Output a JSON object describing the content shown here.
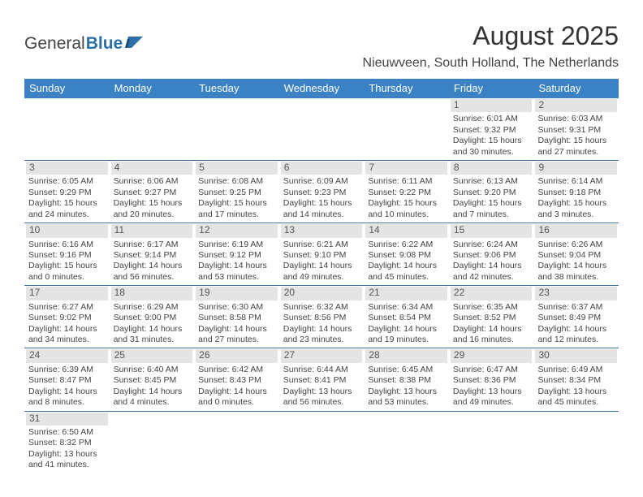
{
  "logo": {
    "text1": "General",
    "text2": "Blue"
  },
  "title": "August 2025",
  "location": "Nieuwveen, South Holland, The Netherlands",
  "theme": {
    "header_bg": "#3b82c4",
    "header_fg": "#ffffff",
    "row_border": "#3b6fa0",
    "daynum_bg": "#e4e4e4",
    "text_color": "#444444"
  },
  "day_headers": [
    "Sunday",
    "Monday",
    "Tuesday",
    "Wednesday",
    "Thursday",
    "Friday",
    "Saturday"
  ],
  "weeks": [
    [
      null,
      null,
      null,
      null,
      null,
      {
        "n": "1",
        "sunrise": "6:01 AM",
        "sunset": "9:32 PM",
        "daylight": "15 hours and 30 minutes."
      },
      {
        "n": "2",
        "sunrise": "6:03 AM",
        "sunset": "9:31 PM",
        "daylight": "15 hours and 27 minutes."
      }
    ],
    [
      {
        "n": "3",
        "sunrise": "6:05 AM",
        "sunset": "9:29 PM",
        "daylight": "15 hours and 24 minutes."
      },
      {
        "n": "4",
        "sunrise": "6:06 AM",
        "sunset": "9:27 PM",
        "daylight": "15 hours and 20 minutes."
      },
      {
        "n": "5",
        "sunrise": "6:08 AM",
        "sunset": "9:25 PM",
        "daylight": "15 hours and 17 minutes."
      },
      {
        "n": "6",
        "sunrise": "6:09 AM",
        "sunset": "9:23 PM",
        "daylight": "15 hours and 14 minutes."
      },
      {
        "n": "7",
        "sunrise": "6:11 AM",
        "sunset": "9:22 PM",
        "daylight": "15 hours and 10 minutes."
      },
      {
        "n": "8",
        "sunrise": "6:13 AM",
        "sunset": "9:20 PM",
        "daylight": "15 hours and 7 minutes."
      },
      {
        "n": "9",
        "sunrise": "6:14 AM",
        "sunset": "9:18 PM",
        "daylight": "15 hours and 3 minutes."
      }
    ],
    [
      {
        "n": "10",
        "sunrise": "6:16 AM",
        "sunset": "9:16 PM",
        "daylight": "15 hours and 0 minutes."
      },
      {
        "n": "11",
        "sunrise": "6:17 AM",
        "sunset": "9:14 PM",
        "daylight": "14 hours and 56 minutes."
      },
      {
        "n": "12",
        "sunrise": "6:19 AM",
        "sunset": "9:12 PM",
        "daylight": "14 hours and 53 minutes."
      },
      {
        "n": "13",
        "sunrise": "6:21 AM",
        "sunset": "9:10 PM",
        "daylight": "14 hours and 49 minutes."
      },
      {
        "n": "14",
        "sunrise": "6:22 AM",
        "sunset": "9:08 PM",
        "daylight": "14 hours and 45 minutes."
      },
      {
        "n": "15",
        "sunrise": "6:24 AM",
        "sunset": "9:06 PM",
        "daylight": "14 hours and 42 minutes."
      },
      {
        "n": "16",
        "sunrise": "6:26 AM",
        "sunset": "9:04 PM",
        "daylight": "14 hours and 38 minutes."
      }
    ],
    [
      {
        "n": "17",
        "sunrise": "6:27 AM",
        "sunset": "9:02 PM",
        "daylight": "14 hours and 34 minutes."
      },
      {
        "n": "18",
        "sunrise": "6:29 AM",
        "sunset": "9:00 PM",
        "daylight": "14 hours and 31 minutes."
      },
      {
        "n": "19",
        "sunrise": "6:30 AM",
        "sunset": "8:58 PM",
        "daylight": "14 hours and 27 minutes."
      },
      {
        "n": "20",
        "sunrise": "6:32 AM",
        "sunset": "8:56 PM",
        "daylight": "14 hours and 23 minutes."
      },
      {
        "n": "21",
        "sunrise": "6:34 AM",
        "sunset": "8:54 PM",
        "daylight": "14 hours and 19 minutes."
      },
      {
        "n": "22",
        "sunrise": "6:35 AM",
        "sunset": "8:52 PM",
        "daylight": "14 hours and 16 minutes."
      },
      {
        "n": "23",
        "sunrise": "6:37 AM",
        "sunset": "8:49 PM",
        "daylight": "14 hours and 12 minutes."
      }
    ],
    [
      {
        "n": "24",
        "sunrise": "6:39 AM",
        "sunset": "8:47 PM",
        "daylight": "14 hours and 8 minutes."
      },
      {
        "n": "25",
        "sunrise": "6:40 AM",
        "sunset": "8:45 PM",
        "daylight": "14 hours and 4 minutes."
      },
      {
        "n": "26",
        "sunrise": "6:42 AM",
        "sunset": "8:43 PM",
        "daylight": "14 hours and 0 minutes."
      },
      {
        "n": "27",
        "sunrise": "6:44 AM",
        "sunset": "8:41 PM",
        "daylight": "13 hours and 56 minutes."
      },
      {
        "n": "28",
        "sunrise": "6:45 AM",
        "sunset": "8:38 PM",
        "daylight": "13 hours and 53 minutes."
      },
      {
        "n": "29",
        "sunrise": "6:47 AM",
        "sunset": "8:36 PM",
        "daylight": "13 hours and 49 minutes."
      },
      {
        "n": "30",
        "sunrise": "6:49 AM",
        "sunset": "8:34 PM",
        "daylight": "13 hours and 45 minutes."
      }
    ],
    [
      {
        "n": "31",
        "sunrise": "6:50 AM",
        "sunset": "8:32 PM",
        "daylight": "13 hours and 41 minutes."
      },
      null,
      null,
      null,
      null,
      null,
      null
    ]
  ],
  "labels": {
    "sunrise": "Sunrise:",
    "sunset": "Sunset:",
    "daylight": "Daylight:"
  }
}
